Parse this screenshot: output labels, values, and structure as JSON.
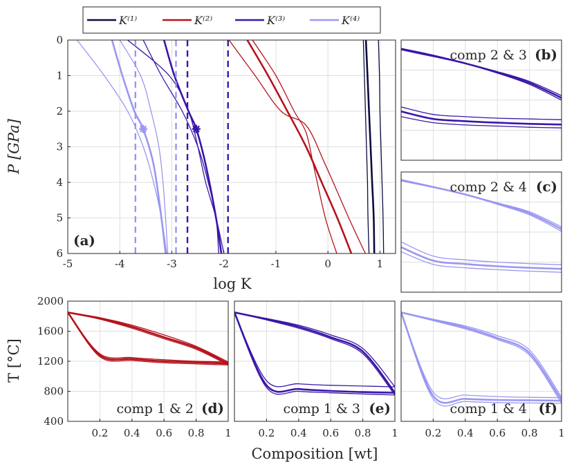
{
  "legend": {
    "entries": [
      {
        "label": "K⁽¹⁾",
        "color": "#0b0b3f"
      },
      {
        "label": "K⁽²⁾",
        "color": "#b5121b"
      },
      {
        "label": "K⁽³⁾",
        "color": "#3a16a8"
      },
      {
        "label": "K⁽⁴⁾",
        "color": "#9a96f2"
      }
    ]
  },
  "labels": {
    "p_axis": "P [GPa]",
    "logk_axis": "log K",
    "t_axis": "T [°C]",
    "comp_axis": "Composition [wt]"
  },
  "chart_data": [
    {
      "id": "a",
      "tag": "(a)",
      "type": "line",
      "xlim": [
        -5,
        1.3
      ],
      "ylim": [
        0,
        6
      ],
      "y_reversed": true,
      "x_ticks": [
        -5,
        -4,
        -3,
        -2,
        -1,
        0,
        1
      ],
      "x_tick_labels": [
        "-5",
        "-4",
        "-3",
        "-2",
        "-1",
        "0",
        "1"
      ],
      "y_ticks": [
        0,
        1,
        2,
        3,
        4,
        5,
        6
      ],
      "y_tick_labels": [
        "0",
        "1",
        "2",
        "3",
        "4",
        "5",
        "6"
      ],
      "series": [
        {
          "component": 1,
          "color": "#0b0b3f",
          "curves": [
            {
              "width": 2.6,
              "points": [
                [
                  0.73,
                  0
                ],
                [
                  0.76,
                  1
                ],
                [
                  0.79,
                  2
                ],
                [
                  0.82,
                  3
                ],
                [
                  0.85,
                  4
                ],
                [
                  0.88,
                  5
                ],
                [
                  0.89,
                  6
                ]
              ]
            },
            {
              "width": 1.3,
              "points": [
                [
                  0.68,
                  0
                ],
                [
                  0.7,
                  1
                ],
                [
                  0.72,
                  2
                ],
                [
                  0.74,
                  3
                ],
                [
                  0.76,
                  4
                ],
                [
                  0.77,
                  5
                ],
                [
                  0.79,
                  6
                ]
              ]
            },
            {
              "width": 1.3,
              "points": [
                [
                  0.97,
                  0
                ],
                [
                  0.99,
                  1
                ],
                [
                  1.0,
                  2
                ],
                [
                  1.02,
                  3
                ],
                [
                  1.04,
                  4
                ],
                [
                  1.06,
                  5
                ],
                [
                  1.07,
                  6
                ]
              ]
            }
          ]
        },
        {
          "component": 2,
          "color": "#b5121b",
          "curves": [
            {
              "width": 2.6,
              "points": [
                [
                  -1.55,
                  0
                ],
                [
                  -1.15,
                  1
                ],
                [
                  -0.78,
                  2
                ],
                [
                  -0.42,
                  3
                ],
                [
                  -0.12,
                  4
                ],
                [
                  0.18,
                  5
                ],
                [
                  0.45,
                  6
                ]
              ]
            },
            {
              "width": 1.3,
              "points": [
                [
                  -1.9,
                  0
                ],
                [
                  -1.4,
                  1
                ],
                [
                  -0.9,
                  2
                ],
                [
                  -0.42,
                  2.4
                ],
                [
                  -0.05,
                  3.5
                ],
                [
                  0.4,
                  5
                ],
                [
                  0.72,
                  6
                ]
              ]
            },
            {
              "width": 1.3,
              "points": [
                [
                  -1.45,
                  0
                ],
                [
                  -1.0,
                  1
                ],
                [
                  -0.65,
                  2
                ],
                [
                  -0.42,
                  2.6
                ],
                [
                  -0.28,
                  3.5
                ],
                [
                  -0.05,
                  5
                ],
                [
                  0.17,
                  6
                ]
              ]
            }
          ]
        },
        {
          "component": 3,
          "color": "#3a16a8",
          "curves": [
            {
              "width": 2.6,
              "points": [
                [
                  -3.15,
                  0
                ],
                [
                  -2.95,
                  1
                ],
                [
                  -2.68,
                  2
                ],
                [
                  -2.53,
                  2.5
                ],
                [
                  -2.35,
                  3.5
                ],
                [
                  -2.15,
                  5
                ],
                [
                  -2.05,
                  6
                ]
              ]
            },
            {
              "width": 1.3,
              "points": [
                [
                  -3.55,
                  0
                ],
                [
                  -3.2,
                  1
                ],
                [
                  -2.8,
                  2
                ],
                [
                  -2.5,
                  3
                ],
                [
                  -2.3,
                  4
                ],
                [
                  -2.15,
                  5
                ],
                [
                  -2.1,
                  6
                ]
              ]
            },
            {
              "width": 1.3,
              "points": [
                [
                  -3.85,
                  0
                ],
                [
                  -3.05,
                  1
                ],
                [
                  -2.68,
                  2
                ],
                [
                  -2.5,
                  3
                ],
                [
                  -2.35,
                  4
                ],
                [
                  -2.15,
                  5
                ],
                [
                  -2.0,
                  6
                ]
              ]
            }
          ]
        },
        {
          "component": 4,
          "color": "#9a96f2",
          "curves": [
            {
              "width": 2.6,
              "points": [
                [
                  -4.15,
                  0
                ],
                [
                  -3.95,
                  1
                ],
                [
                  -3.72,
                  2
                ],
                [
                  -3.55,
                  2.5
                ],
                [
                  -3.35,
                  3.5
                ],
                [
                  -3.2,
                  5
                ],
                [
                  -3.12,
                  6
                ]
              ]
            },
            {
              "width": 1.3,
              "points": [
                [
                  -4.82,
                  0
                ],
                [
                  -4.3,
                  1
                ],
                [
                  -3.85,
                  2
                ],
                [
                  -3.55,
                  3
                ],
                [
                  -3.35,
                  4
                ],
                [
                  -3.2,
                  5
                ],
                [
                  -3.1,
                  6
                ]
              ]
            },
            {
              "width": 1.3,
              "points": [
                [
                  -4.0,
                  0
                ],
                [
                  -3.6,
                  1
                ],
                [
                  -3.4,
                  2
                ],
                [
                  -3.25,
                  3
                ],
                [
                  -3.17,
                  4
                ],
                [
                  -3.12,
                  5
                ],
                [
                  -3.08,
                  6
                ]
              ]
            }
          ]
        }
      ],
      "vlines": [
        {
          "x": -3.7,
          "color": "#9a96f2"
        },
        {
          "x": -2.92,
          "color": "#9a96f2"
        },
        {
          "x": -2.7,
          "color": "#3a16a8"
        },
        {
          "x": -1.92,
          "color": "#3a16a8"
        }
      ],
      "markers": [
        {
          "x": -3.55,
          "y": 2.5,
          "color": "#9a96f2"
        },
        {
          "x": -2.53,
          "y": 2.5,
          "color": "#3a16a8"
        }
      ]
    },
    {
      "id": "b",
      "tag": "(b)",
      "caption": "comp 2 & 3",
      "type": "line",
      "color": "#3a16a8",
      "xlim": [
        0,
        1
      ],
      "ylim": [
        400,
        2000
      ],
      "lower": [
        {
          "y": [
            1050,
            950,
            920,
            900,
            885,
            875
          ],
          "width": 2.6
        },
        {
          "y": [
            980,
            900,
            870,
            855,
            840,
            830
          ],
          "width": 1.3
        },
        {
          "y": [
            1110,
            1010,
            980,
            960,
            950,
            940
          ],
          "width": 1.3
        }
      ],
      "upper": [
        {
          "y": [
            1880,
            1790,
            1690,
            1570,
            1430,
            1230
          ],
          "width": 2.6
        },
        {
          "y": [
            1870,
            1780,
            1690,
            1580,
            1450,
            1260
          ],
          "width": 1.3
        },
        {
          "y": [
            1890,
            1800,
            1690,
            1560,
            1410,
            1200
          ],
          "width": 1.3
        }
      ]
    },
    {
      "id": "c",
      "tag": "(c)",
      "caption": "comp 2 & 4",
      "type": "line",
      "color": "#9a96f2",
      "xlim": [
        0,
        1
      ],
      "ylim": [
        400,
        2000
      ],
      "lower": [
        {
          "y": [
            1000,
            820,
            775,
            745,
            725,
            710
          ],
          "width": 2.6
        },
        {
          "y": [
            940,
            770,
            725,
            700,
            680,
            665
          ],
          "width": 1.3
        },
        {
          "y": [
            1070,
            880,
            830,
            800,
            780,
            765
          ],
          "width": 1.3
        }
      ],
      "upper": [
        {
          "y": [
            1890,
            1800,
            1700,
            1580,
            1450,
            1240
          ],
          "width": 2.6
        },
        {
          "y": [
            1880,
            1795,
            1700,
            1590,
            1470,
            1270
          ],
          "width": 1.3
        },
        {
          "y": [
            1900,
            1805,
            1700,
            1570,
            1430,
            1210
          ],
          "width": 1.3
        }
      ]
    },
    {
      "id": "d",
      "tag": "(d)",
      "caption": "comp 1 & 2",
      "type": "line",
      "color": "#b5121b",
      "xlim": [
        0,
        1
      ],
      "ylim": [
        400,
        2000
      ],
      "x_ticks": [
        0.2,
        0.4,
        0.6,
        0.8,
        1
      ],
      "x_tick_labels": [
        "0.2",
        "0.4",
        "0.6",
        "0.8",
        "1"
      ],
      "y_ticks": [
        400,
        800,
        1200,
        1600,
        2000
      ],
      "y_tick_labels": [
        "400",
        "800",
        "1200",
        "1600",
        "2000"
      ],
      "lower": [
        {
          "y": [
            1850,
            1280,
            1230,
            1200,
            1185,
            1170
          ],
          "width": 2.6
        },
        {
          "y": [
            1850,
            1300,
            1250,
            1220,
            1200,
            1190
          ],
          "width": 1.3
        },
        {
          "y": [
            1850,
            1260,
            1210,
            1180,
            1165,
            1150
          ],
          "width": 1.3
        }
      ],
      "upper": [
        {
          "y": [
            1850,
            1770,
            1660,
            1520,
            1380,
            1170
          ],
          "width": 2.6
        },
        {
          "y": [
            1850,
            1780,
            1680,
            1550,
            1400,
            1190
          ],
          "width": 1.3
        },
        {
          "y": [
            1850,
            1760,
            1640,
            1500,
            1360,
            1150
          ],
          "width": 1.3
        }
      ]
    },
    {
      "id": "e",
      "tag": "(e)",
      "caption": "comp 1 & 3",
      "type": "line",
      "color": "#3a16a8",
      "xlim": [
        0,
        1
      ],
      "ylim": [
        400,
        2000
      ],
      "x_ticks": [
        0.2,
        0.4,
        0.6,
        0.8,
        1
      ],
      "x_tick_labels": [
        "0.2",
        "0.4",
        "0.6",
        "0.8",
        "1"
      ],
      "lower": [
        {
          "y": [
            1850,
            880,
            830,
            805,
            790,
            780
          ],
          "width": 2.6
        },
        {
          "y": [
            1850,
            940,
            900,
            880,
            870,
            860
          ],
          "width": 1.3
        },
        {
          "y": [
            1850,
            850,
            800,
            780,
            765,
            750
          ],
          "width": 1.3
        }
      ],
      "upper": [
        {
          "y": [
            1850,
            1760,
            1660,
            1520,
            1330,
            780
          ],
          "width": 2.6
        },
        {
          "y": [
            1850,
            1770,
            1680,
            1550,
            1370,
            860
          ],
          "width": 1.3
        },
        {
          "y": [
            1850,
            1750,
            1640,
            1500,
            1300,
            750
          ],
          "width": 1.3
        }
      ]
    },
    {
      "id": "f",
      "tag": "(f)",
      "caption": "comp 1 & 4",
      "type": "line",
      "color": "#9a96f2",
      "xlim": [
        0,
        1
      ],
      "ylim": [
        400,
        2000
      ],
      "x_ticks": [
        0.2,
        0.4,
        0.6,
        0.8,
        1
      ],
      "x_tick_labels": [
        "0.2",
        "0.4",
        "0.6",
        "0.8",
        "1"
      ],
      "lower": [
        {
          "y": [
            1850,
            740,
            700,
            685,
            680,
            675
          ],
          "width": 2.6
        },
        {
          "y": [
            1850,
            790,
            750,
            730,
            720,
            715
          ],
          "width": 1.3
        },
        {
          "y": [
            1850,
            700,
            665,
            650,
            645,
            640
          ],
          "width": 1.3
        }
      ],
      "upper": [
        {
          "y": [
            1850,
            1750,
            1650,
            1510,
            1310,
            680
          ],
          "width": 2.6
        },
        {
          "y": [
            1850,
            1760,
            1670,
            1540,
            1350,
            720
          ],
          "width": 1.3
        },
        {
          "y": [
            1850,
            1740,
            1630,
            1490,
            1280,
            640
          ],
          "width": 1.3
        }
      ]
    }
  ]
}
